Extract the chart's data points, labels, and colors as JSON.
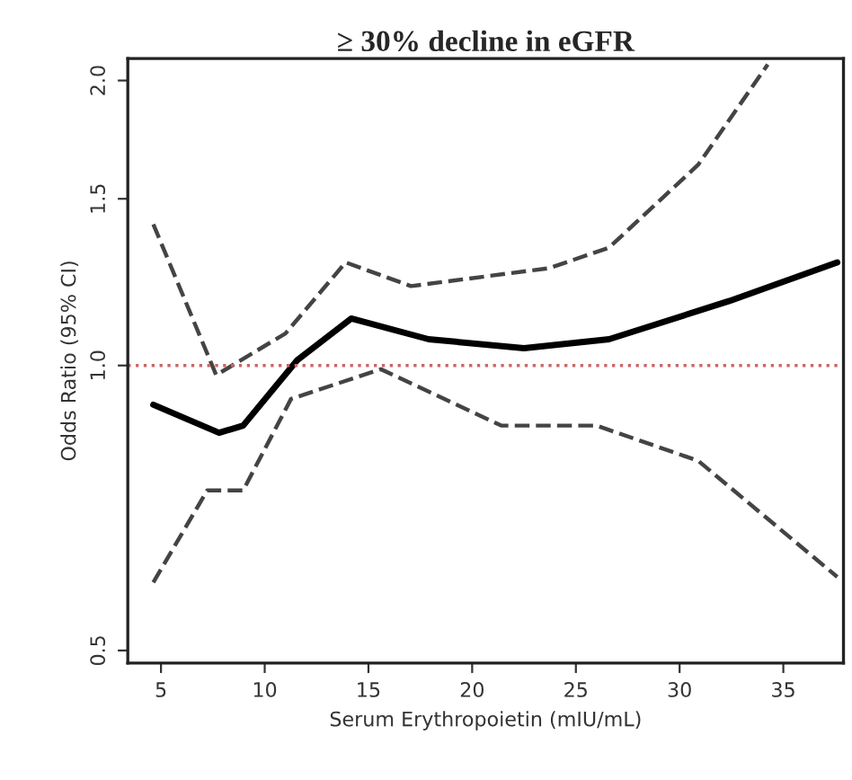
{
  "chart_data": {
    "type": "line",
    "title": "≥ 30% decline in eGFR",
    "xlabel": "Serum Erythropoietin (mIU/mL)",
    "ylabel": "Odds Ratio (95% CI)",
    "log": "y",
    "xlim": [
      3.4,
      37.9
    ],
    "ylim": [
      0.485,
      2.11
    ],
    "xticks": [
      5,
      10,
      15,
      20,
      25,
      30,
      35
    ],
    "yticks": [
      {
        "value": 0.5,
        "label": "0.5"
      },
      {
        "value": 1.0,
        "label": "1.0"
      },
      {
        "value": 1.5,
        "label": "1.5"
      },
      {
        "value": 2.0,
        "label": "2.0"
      }
    ],
    "grid": false,
    "legend": false,
    "marker": "none",
    "series": [
      {
        "color": "#000000",
        "line_style": "solid",
        "x": [
          4.63,
          7.8,
          8.96,
          11.57,
          14.17,
          17.9,
          22.5,
          26.6,
          32.4,
          37.6
        ],
        "values": [
          0.909,
          0.849,
          0.864,
          1.013,
          1.121,
          1.066,
          1.043,
          1.066,
          1.17,
          1.285
        ]
      },
      {
        "color": "#444444",
        "line_style": "dashed",
        "x": [
          4.63,
          7.66,
          11.0,
          13.9,
          17.05,
          23.7,
          26.6,
          30.9,
          34.25
        ],
        "values": [
          1.41,
          0.977,
          1.081,
          1.285,
          1.213,
          1.267,
          1.332,
          1.63,
          2.08
        ]
      },
      {
        "color": "#444444",
        "line_style": "dashed",
        "x": [
          4.63,
          7.23,
          8.96,
          11.27,
          15.6,
          21.4,
          26.0,
          30.9,
          37.6
        ],
        "values": [
          0.59,
          0.738,
          0.738,
          0.922,
          0.991,
          0.864,
          0.864,
          0.793,
          0.598
        ]
      }
    ],
    "ref_lines": [
      {
        "axis": "y",
        "value": 1.0,
        "color": "#cc6666",
        "line_style": "dotted"
      }
    ]
  }
}
